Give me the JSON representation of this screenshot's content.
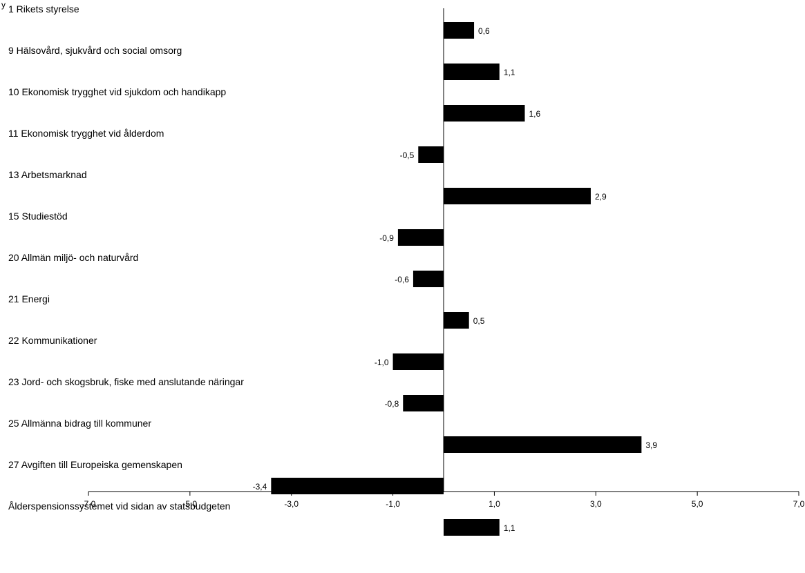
{
  "chart_data": {
    "type": "bar",
    "orientation": "horizontal",
    "corner_text": "y",
    "title": "",
    "xlabel": "",
    "ylabel": "",
    "categories": [
      "1 Rikets styrelse",
      "9 Hälsovård, sjukvård och social omsorg",
      "10 Ekonomisk trygghet vid sjukdom och handikapp",
      "11 Ekonomisk trygghet vid ålderdom",
      "13 Arbetsmarknad",
      "15 Studiestöd",
      "20 Allmän miljö- och naturvård",
      "21 Energi",
      "22 Kommunikationer",
      "23 Jord- och skogsbruk, fiske med anslutande näringar",
      "25 Allmänna bidrag till kommuner",
      "27 Avgiften till Europeiska gemenskapen",
      "Ålderspensionssystemet vid sidan av statsbudgeten"
    ],
    "values": [
      0.6,
      1.1,
      1.6,
      -0.5,
      2.9,
      -0.9,
      -0.6,
      0.5,
      -1.0,
      -0.8,
      3.9,
      -3.4,
      1.1
    ],
    "value_labels": [
      "0,6",
      "1,1",
      "1,6",
      "-0,5",
      "2,9",
      "-0,9",
      "-0,6",
      "0,5",
      "-1,0",
      "-0,8",
      "3,9",
      "-3,4",
      "1,1"
    ],
    "xlim": [
      -7.0,
      7.0
    ],
    "xticks": [
      -7.0,
      -5.0,
      -3.0,
      -1.0,
      1.0,
      3.0,
      5.0,
      7.0
    ],
    "xtick_labels": [
      "-7,0",
      "-5,0",
      "-3,0",
      "-1,0",
      "1,0",
      "3,0",
      "5,0",
      "7,0"
    ],
    "grid": false,
    "legend": "none",
    "colors": {
      "bar": "#000000",
      "axis": "#000000",
      "background": "#ffffff"
    }
  }
}
